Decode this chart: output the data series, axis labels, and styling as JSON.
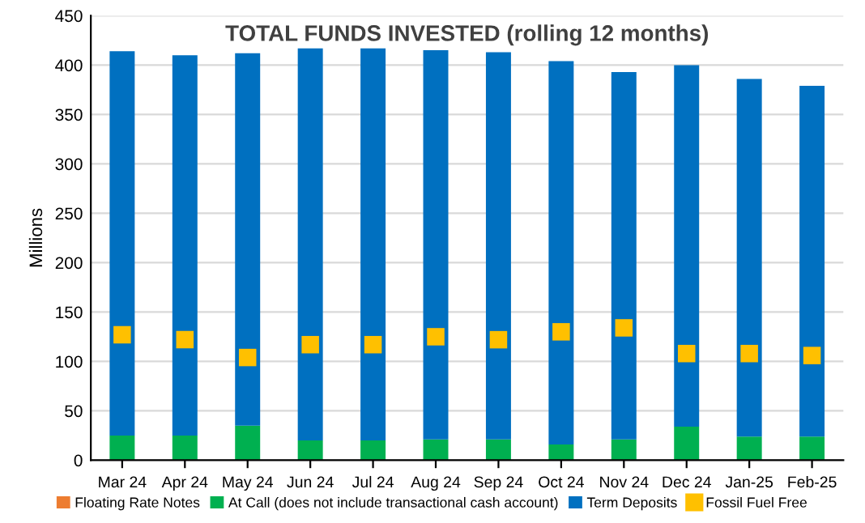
{
  "chart_data": {
    "type": "bar",
    "stacked": true,
    "title": "TOTAL FUNDS INVESTED (rolling 12 months)",
    "ylabel": "Millions",
    "categories": [
      "Mar 24",
      "Apr 24",
      "May 24",
      "Jun 24",
      "Jul 24",
      "Aug 24",
      "Sep 24",
      "Oct 24",
      "Nov 24",
      "Dec 24",
      "Jan-25",
      "Feb-25"
    ],
    "series": [
      {
        "name": "Floating Rate Notes",
        "color": "#ed7d31",
        "values": [
          0,
          0,
          0,
          0,
          0,
          0,
          0,
          0,
          0,
          0,
          0,
          0
        ]
      },
      {
        "name": "At Call (does not include transactional cash account)",
        "color": "#00b050",
        "values": [
          25,
          25,
          35,
          20,
          20,
          21,
          21,
          16,
          21,
          34,
          24,
          24
        ]
      },
      {
        "name": "Term Deposits",
        "color": "#0070c0",
        "values": [
          389,
          385,
          377,
          397,
          397,
          394,
          392,
          388,
          372,
          366,
          362,
          355
        ]
      },
      {
        "name": "Fossil Fuel Free",
        "type": "scatter",
        "marker": "square",
        "color": "#ffc000",
        "values": [
          127,
          122,
          104,
          117,
          117,
          125,
          122,
          130,
          134,
          108,
          108,
          106
        ]
      }
    ],
    "ylim": [
      0,
      450
    ],
    "yticks": [
      0,
      50,
      100,
      150,
      200,
      250,
      300,
      350,
      400,
      450
    ],
    "grid": "y",
    "legend": "bottom"
  }
}
